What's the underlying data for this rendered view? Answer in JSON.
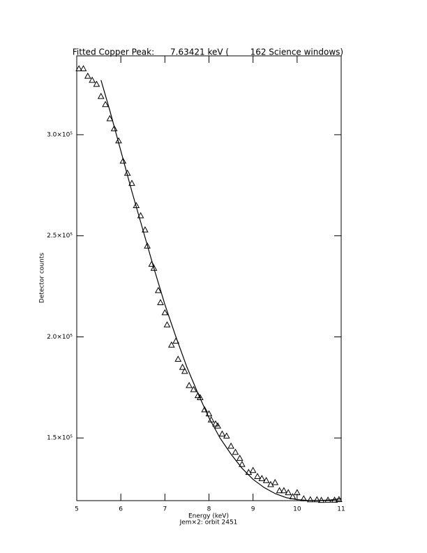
{
  "chart_data": {
    "type": "scatter",
    "title": "Fitted Copper Peak:      7.63421 keV (        162 Science windows)",
    "xlabel": "Energy (keV)",
    "footnote": "Jem×2: orbit 2451",
    "ylabel": "Detector counts",
    "xlim": [
      5,
      11
    ],
    "xticks": [
      5,
      6,
      7,
      8,
      9,
      10,
      11
    ],
    "ylim": [
      119000,
      339000
    ],
    "yticks": [
      {
        "value": 150000,
        "label": "1.5×10⁵"
      },
      {
        "value": 200000,
        "label": "2.0×10⁵"
      },
      {
        "value": 250000,
        "label": "2.5×10⁵"
      },
      {
        "value": 300000,
        "label": "3.0×10⁵"
      }
    ],
    "series": [
      {
        "style": "markers",
        "marker": "triangle",
        "color": "#000000",
        "x": [
          5.05,
          5.15,
          5.25,
          5.35,
          5.45,
          5.55,
          5.65,
          5.75,
          5.85,
          5.95,
          6.05,
          6.15,
          6.25,
          6.35,
          6.45,
          6.55,
          6.6,
          6.7,
          6.75,
          6.85,
          6.9,
          7.0,
          7.05,
          7.15,
          7.25,
          7.3,
          7.4,
          7.45,
          7.55,
          7.65,
          7.75,
          7.8,
          7.9,
          8.0,
          8.05,
          8.15,
          8.2,
          8.3,
          8.4,
          8.5,
          8.6,
          8.7,
          8.75,
          8.9,
          9.0,
          9.1,
          9.2,
          9.3,
          9.4,
          9.5,
          9.6,
          9.7,
          9.8,
          9.9,
          10.0,
          10.15,
          10.3,
          10.45,
          10.55,
          10.7,
          10.85,
          10.95
        ],
        "values": [
          332700,
          332700,
          329000,
          327000,
          325000,
          319000,
          315000,
          308000,
          303000,
          297000,
          287000,
          281000,
          276000,
          265000,
          260000,
          253000,
          245000,
          236000,
          234000,
          223000,
          217000,
          212000,
          206000,
          196000,
          198000,
          189000,
          185000,
          183000,
          176000,
          174000,
          171000,
          170000,
          164000,
          162000,
          159000,
          157000,
          156000,
          152000,
          151000,
          146000,
          143000,
          140000,
          137000,
          133000,
          134000,
          131000,
          130000,
          129000,
          127000,
          128000,
          124000,
          124000,
          123000,
          121000,
          123000,
          120000,
          119500,
          119500,
          119200,
          119300,
          119300,
          119600
        ]
      },
      {
        "style": "line",
        "color": "#000000",
        "x": [
          5.55,
          5.75,
          6.0,
          6.25,
          6.5,
          6.75,
          7.0,
          7.25,
          7.5,
          7.75,
          8.0,
          8.25,
          8.5,
          8.75,
          9.0,
          9.25,
          9.5,
          9.75,
          10.0,
          10.25,
          10.5,
          10.75,
          11.0
        ],
        "values": [
          327000,
          312000,
          292000,
          272000,
          253000,
          234000,
          216000,
          200000,
          185000,
          172000,
          160000,
          150000,
          142000,
          135000,
          129500,
          125500,
          122500,
          120500,
          119500,
          119100,
          119100,
          119300,
          120000
        ]
      }
    ]
  }
}
